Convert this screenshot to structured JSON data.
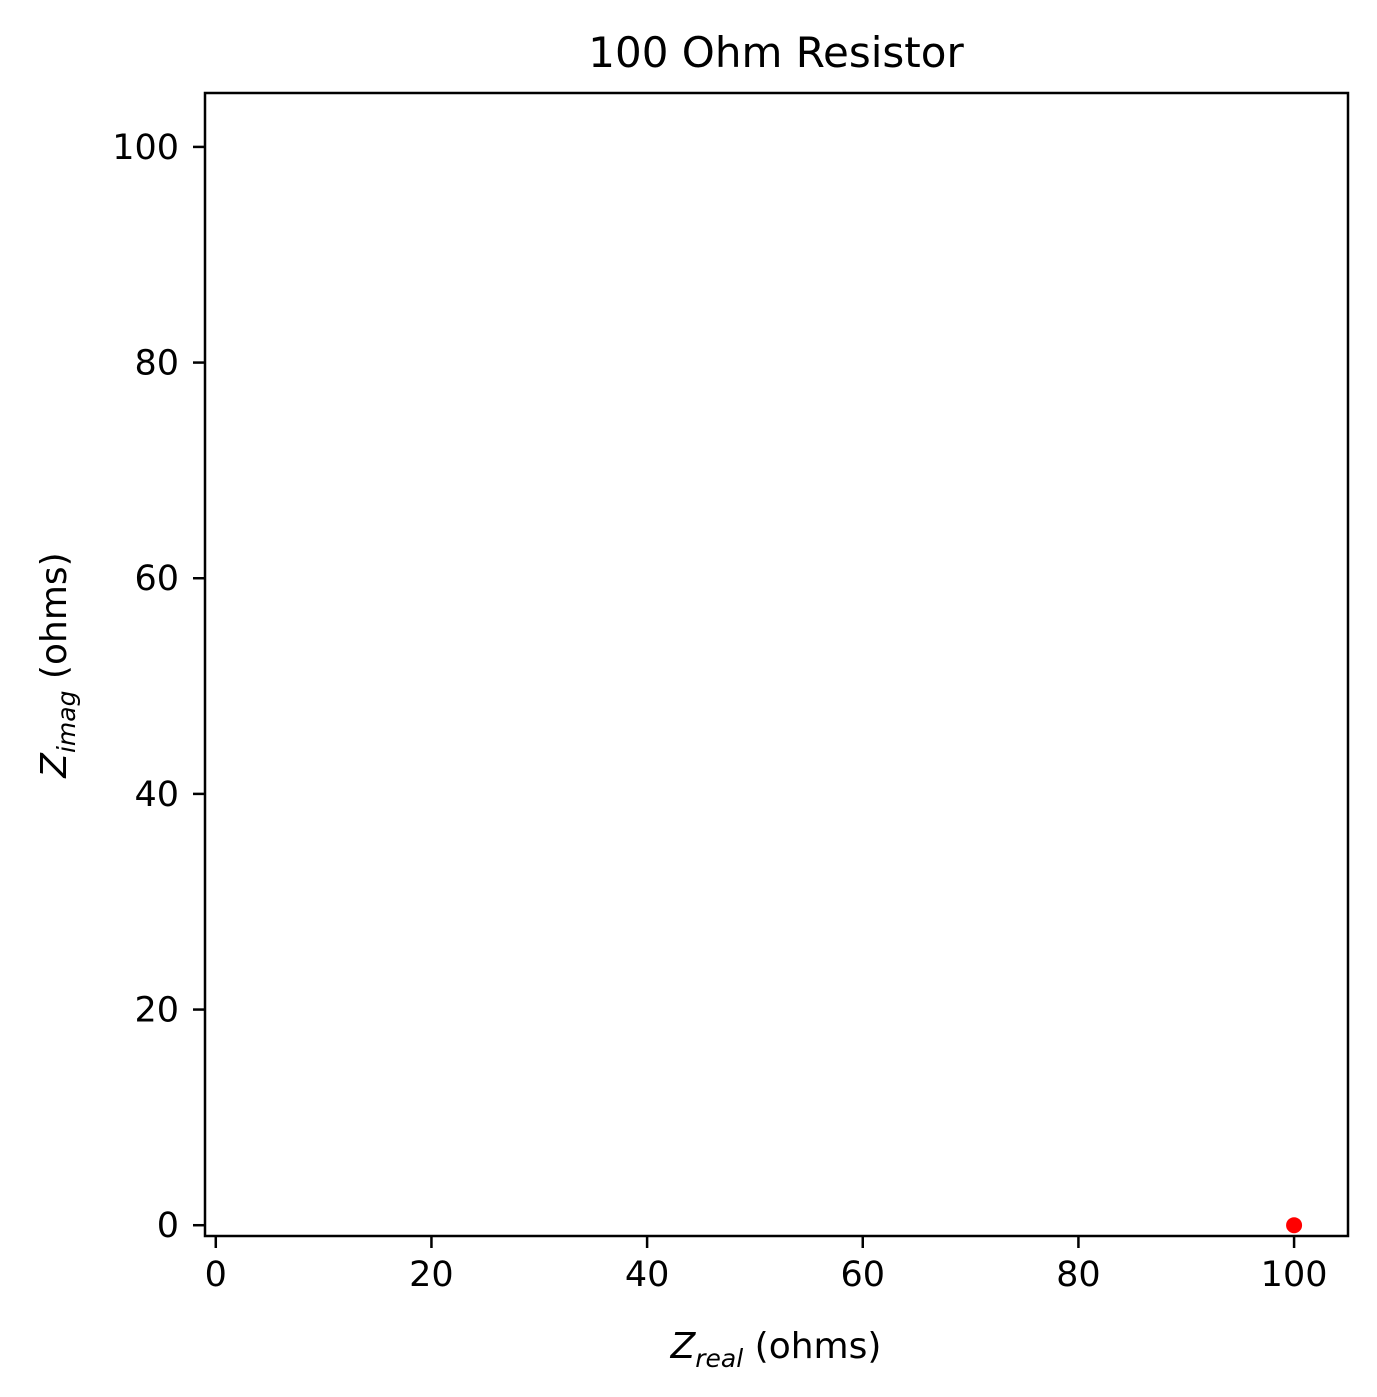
{
  "chart_data": {
    "type": "scatter",
    "title": "100 Ohm Resistor",
    "xlabel": {
      "main": "Z",
      "sub": "real",
      "rest": " (ohms)"
    },
    "ylabel": {
      "main": "Z",
      "sub": "imag",
      "rest": " (ohms)"
    },
    "xlim": [
      -1,
      105
    ],
    "ylim": [
      -1,
      105
    ],
    "xticks": [
      0,
      20,
      40,
      60,
      80,
      100
    ],
    "yticks": [
      0,
      20,
      40,
      60,
      80,
      100
    ],
    "xtick_labels": [
      "0",
      "20",
      "40",
      "60",
      "80",
      "100"
    ],
    "ytick_labels": [
      "0",
      "20",
      "40",
      "60",
      "80",
      "100"
    ],
    "grid": false,
    "series": [
      {
        "points": [
          {
            "x": 100,
            "y": 0
          }
        ],
        "color": "#ff0000",
        "marker": "circle"
      }
    ]
  }
}
